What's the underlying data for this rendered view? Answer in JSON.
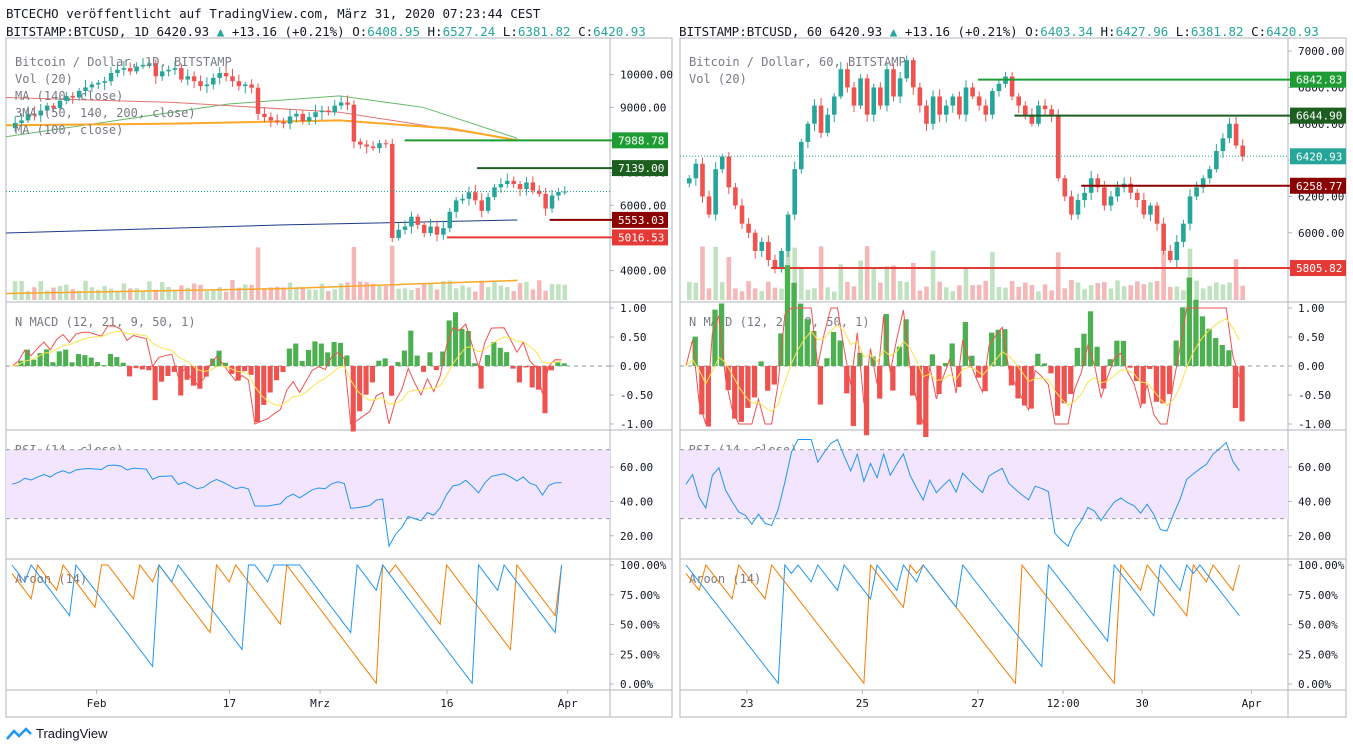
{
  "header": {
    "publish_line": "BTCECHO veröffentlicht auf TradingView.com, März 31, 2020 07:23:44 CEST",
    "left_quote": {
      "symbol": "BITSTAMP:BTCUSD, 1D",
      "last": "6420.93",
      "change": "+13.16 (+0.21%)",
      "o_label": "O:",
      "o": "6408.95",
      "h_label": "H:",
      "h": "6527.24",
      "l_label": "L:",
      "l": "6381.82",
      "c_label": "C:",
      "c": "6420.93"
    },
    "right_quote": {
      "symbol": "BITSTAMP:BTCUSD, 60",
      "last": "6420.93",
      "change": "+13.16 (+0.21%)",
      "o_label": "O:",
      "o": "6403.34",
      "h_label": "H:",
      "h": "6427.96",
      "l_label": "L:",
      "l": "6381.82",
      "c_label": "C:",
      "c": "6420.93"
    }
  },
  "footer": {
    "brand": "TradingView"
  },
  "colors": {
    "up": "#26a69a",
    "down": "#ef5350",
    "green_line": "#1e9c34",
    "dark_green": "#1b5e20",
    "red_line": "#e53935",
    "dark_red": "#8b0000",
    "macd": "#ef5350",
    "signal": "#fbe44b",
    "rsi": "#2196f3",
    "rsi_band": "#f3e5fd",
    "aroon_up": "#f57c00",
    "aroon_down": "#2196f3",
    "grid": "#e0e3eb",
    "axis_text": "#131722"
  },
  "chart_data": [
    {
      "id": "left",
      "type": "candlestick",
      "title": "Bitcoin / Dollar, 1D, BITSTAMP",
      "legend": [
        "Vol (20)",
        "MA (140, close)",
        "3MA (50, 140, 200, close)",
        "MA (100, close)"
      ],
      "y_ticks": [
        "10000.00",
        "9000.00",
        "8000.00",
        "7000.00",
        "6000.00",
        "5000.00",
        "4000.00"
      ],
      "y_range": [
        3100,
        11000
      ],
      "x_ticks": [
        "Feb",
        "17",
        "Mrz",
        "16",
        "Apr"
      ],
      "levels": [
        {
          "label": "7988.78",
          "value": 7988.78,
          "color": "#1e9c34"
        },
        {
          "label": "7139.00",
          "value": 7139.0,
          "color": "#1b5e20"
        },
        {
          "label": "5553.03",
          "value": 5553.03,
          "color": "#8b0000"
        },
        {
          "label": "5016.53",
          "value": 5016.53,
          "color": "#e53935"
        }
      ],
      "last_price": 6420.93,
      "closes": [
        8520,
        8600,
        8800,
        8750,
        8900,
        9050,
        8980,
        9200,
        9350,
        9300,
        9500,
        9610,
        9700,
        9750,
        9800,
        10050,
        10150,
        10200,
        10100,
        10250,
        10300,
        10350,
        9950,
        10100,
        10150,
        10200,
        9850,
        9950,
        9800,
        9650,
        9700,
        9900,
        10050,
        9950,
        9800,
        9650,
        9700,
        9600,
        8800,
        8700,
        8600,
        8550,
        8500,
        8720,
        8800,
        8580,
        8700,
        8850,
        8900,
        8850,
        9050,
        9150,
        9080,
        7950,
        7860,
        7800,
        7750,
        7900,
        7880,
        5000,
        5250,
        5350,
        5650,
        5400,
        5150,
        5350,
        5100,
        5300,
        5800,
        6150,
        6200,
        6400,
        6150,
        5830,
        6250,
        6550,
        6650,
        6750,
        6650,
        6500,
        6700,
        6450,
        6350,
        5900,
        6300,
        6407,
        6421
      ],
      "volume_note": "Vol (20)",
      "indicators": [
        {
          "name": "N MACD (12, 21, 9, 50, 1)",
          "ticks": [
            "1.00",
            "0.50",
            "0.00",
            "-0.50",
            "-1.00"
          ],
          "range": [
            -1,
            1
          ]
        },
        {
          "name": "RSI (14, close)",
          "ticks": [
            "60.00",
            "40.00",
            "20.00"
          ],
          "range": [
            10,
            78
          ],
          "bands": [
            30,
            70
          ]
        },
        {
          "name": "Aroon (14)",
          "ticks": [
            "100.00%",
            "75.00%",
            "50.00%",
            "25.00%",
            "0.00%"
          ],
          "range": [
            0,
            100
          ]
        }
      ]
    },
    {
      "id": "right",
      "type": "candlestick",
      "title": "Bitcoin / Dollar, 60, BITSTAMP",
      "legend": [
        "Vol (20)"
      ],
      "y_ticks": [
        "7000.00",
        "6800.00",
        "6600.00",
        "6400.00",
        "6200.00",
        "6000.00",
        "5800.00"
      ],
      "y_range": [
        5630,
        7050
      ],
      "x_ticks": [
        "23",
        "25",
        "27",
        "12:00",
        "30",
        "Apr"
      ],
      "levels": [
        {
          "label": "6842.83",
          "value": 6842.83,
          "color": "#1e9c34"
        },
        {
          "label": "6644.90",
          "value": 6644.9,
          "color": "#1b5e20"
        },
        {
          "label": "6258.77",
          "value": 6258.77,
          "color": "#8b0000"
        },
        {
          "label": "5805.82",
          "value": 5805.82,
          "color": "#e53935"
        }
      ],
      "last_price": 6420.93,
      "closes": [
        6300,
        6380,
        6200,
        6100,
        6350,
        6420,
        6250,
        6150,
        6050,
        6000,
        5900,
        5950,
        5850,
        5800,
        5900,
        6100,
        6350,
        6500,
        6600,
        6700,
        6550,
        6650,
        6750,
        6900,
        6800,
        6700,
        6850,
        6650,
        6800,
        6700,
        6900,
        6750,
        6850,
        6950,
        6800,
        6700,
        6600,
        6750,
        6650,
        6700,
        6750,
        6650,
        6800,
        6750,
        6700,
        6650,
        6780,
        6820,
        6860,
        6750,
        6700,
        6650,
        6600,
        6700,
        6680,
        6650,
        6300,
        6200,
        6100,
        6180,
        6220,
        6300,
        6250,
        6150,
        6200,
        6250,
        6270,
        6220,
        6180,
        6100,
        6150,
        6050,
        5900,
        5850,
        5950,
        6050,
        6200,
        6250,
        6300,
        6350,
        6450,
        6520,
        6600,
        6480,
        6420
      ],
      "indicators": [
        {
          "name": "N MACD (12, 21, 9, 50, 1)",
          "ticks": [
            "1.00",
            "0.50",
            "0.00",
            "-0.50",
            "-1.00"
          ],
          "range": [
            -1,
            1
          ]
        },
        {
          "name": "RSI (14, close)",
          "ticks": [
            "60.00",
            "40.00",
            "20.00"
          ],
          "range": [
            10,
            78
          ],
          "bands": [
            30,
            70
          ]
        },
        {
          "name": "Aroon (14)",
          "ticks": [
            "100.00%",
            "75.00%",
            "50.00%",
            "25.00%",
            "0.00%"
          ],
          "range": [
            0,
            100
          ]
        }
      ]
    }
  ]
}
